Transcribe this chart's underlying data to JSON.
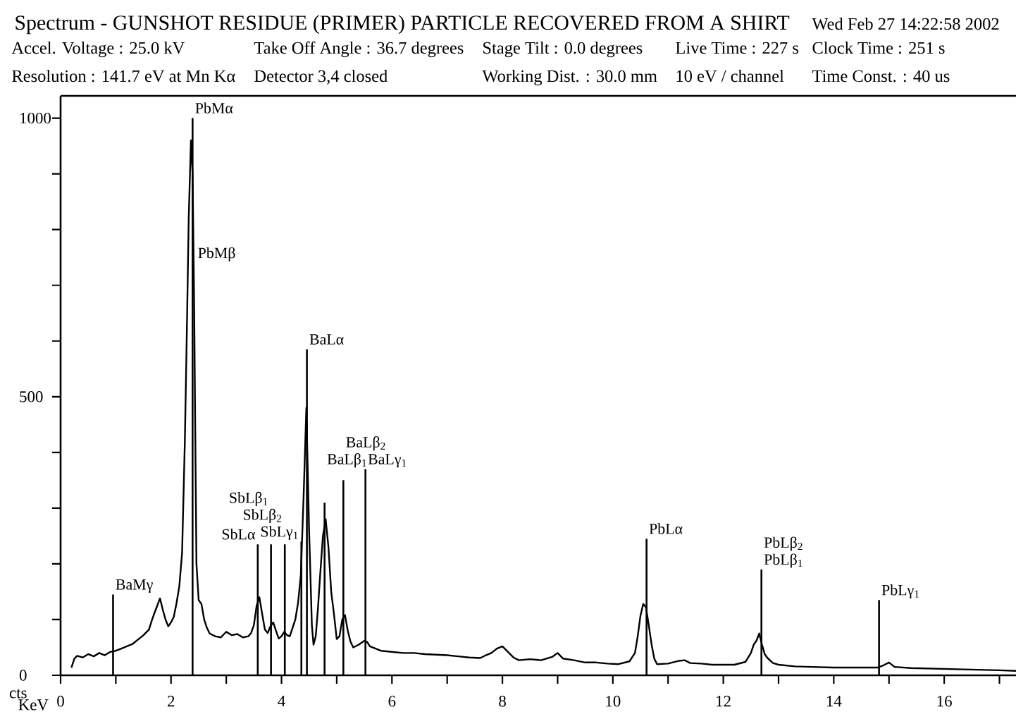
{
  "chart_data": {
    "type": "line",
    "title": "Spectrum - GUNSHOT RESIDUE (PRIMER) PARTICLE RECOVERED FROM A SHIRT",
    "subtitle": "Wed Feb 27 14:22:58 2002",
    "xlabel": "KeV",
    "ylabel": "cts",
    "xlim": [
      0,
      17.3
    ],
    "ylim": [
      0,
      1040
    ],
    "xticks": [
      0,
      {
        "value": 1,
        "label": null
      },
      2,
      {
        "value": 3,
        "label": null
      },
      4,
      {
        "value": 5,
        "label": null
      },
      6,
      {
        "value": 7,
        "label": null
      },
      8,
      {
        "value": 9,
        "label": null
      },
      10,
      {
        "value": 11,
        "label": null
      },
      12,
      {
        "value": 13,
        "label": null
      },
      14,
      {
        "value": 15,
        "label": null
      },
      16,
      {
        "value": 17,
        "label": null
      }
    ],
    "yticks": [
      0,
      {
        "value": 100,
        "label": null
      },
      {
        "value": 200,
        "label": null
      },
      {
        "value": 300,
        "label": null
      },
      {
        "value": 400,
        "label": null
      },
      500,
      {
        "value": 600,
        "label": null
      },
      {
        "value": 700,
        "label": null
      },
      {
        "value": 800,
        "label": null
      },
      {
        "value": 900,
        "label": null
      },
      1000
    ],
    "series": [
      {
        "color": "#000000",
        "x": [
          0.2,
          0.25,
          0.3,
          0.4,
          0.5,
          0.6,
          0.7,
          0.8,
          0.9,
          1.0,
          1.1,
          1.2,
          1.3,
          1.4,
          1.5,
          1.6,
          1.65,
          1.7,
          1.75,
          1.8,
          1.85,
          1.9,
          1.95,
          2.0,
          2.05,
          2.1,
          2.15,
          2.2,
          2.25,
          2.29,
          2.32,
          2.36,
          2.39,
          2.42,
          2.44,
          2.46,
          2.5,
          2.55,
          2.6,
          2.65,
          2.7,
          2.8,
          2.9,
          3.0,
          3.1,
          3.2,
          3.3,
          3.4,
          3.45,
          3.5,
          3.55,
          3.6,
          3.65,
          3.7,
          3.75,
          3.8,
          3.85,
          3.9,
          3.95,
          4.0,
          4.05,
          4.1,
          4.15,
          4.2,
          4.25,
          4.3,
          4.35,
          4.4,
          4.45,
          4.5,
          4.55,
          4.58,
          4.62,
          4.66,
          4.7,
          4.75,
          4.8,
          4.85,
          4.9,
          4.95,
          5.0,
          5.05,
          5.1,
          5.15,
          5.2,
          5.25,
          5.3,
          5.4,
          5.5,
          5.55,
          5.6,
          5.7,
          5.8,
          6.0,
          6.2,
          6.4,
          6.6,
          6.8,
          7.0,
          7.2,
          7.4,
          7.6,
          7.7,
          7.8,
          7.9,
          8.0,
          8.1,
          8.2,
          8.3,
          8.5,
          8.7,
          8.9,
          9.0,
          9.1,
          9.3,
          9.5,
          9.7,
          9.9,
          10.1,
          10.3,
          10.4,
          10.45,
          10.5,
          10.55,
          10.6,
          10.65,
          10.7,
          10.75,
          10.8,
          11.0,
          11.2,
          11.3,
          11.4,
          11.6,
          11.8,
          12.0,
          12.2,
          12.4,
          12.5,
          12.55,
          12.6,
          12.65,
          12.7,
          12.75,
          12.8,
          12.9,
          13.0,
          13.3,
          13.6,
          14.0,
          14.4,
          14.8,
          14.9,
          15.0,
          15.1,
          15.4,
          15.8,
          16.2,
          16.6,
          17.0,
          17.3
        ],
        "values": [
          15,
          30,
          35,
          32,
          38,
          34,
          40,
          36,
          42,
          44,
          48,
          52,
          56,
          64,
          72,
          82,
          98,
          112,
          125,
          138,
          118,
          100,
          88,
          95,
          105,
          130,
          160,
          220,
          420,
          640,
          820,
          960,
          900,
          650,
          420,
          200,
          135,
          128,
          100,
          85,
          75,
          70,
          68,
          78,
          72,
          74,
          68,
          70,
          76,
          90,
          125,
          140,
          110,
          82,
          76,
          88,
          95,
          80,
          66,
          70,
          78,
          72,
          70,
          85,
          100,
          130,
          180,
          320,
          480,
          260,
          90,
          55,
          70,
          120,
          180,
          250,
          280,
          230,
          150,
          110,
          65,
          70,
          100,
          108,
          80,
          60,
          50,
          55,
          62,
          60,
          52,
          48,
          44,
          42,
          40,
          40,
          38,
          37,
          36,
          34,
          32,
          31,
          36,
          40,
          48,
          52,
          42,
          32,
          27,
          29,
          27,
          33,
          40,
          30,
          27,
          23,
          23,
          21,
          20,
          25,
          40,
          70,
          107,
          128,
          122,
          90,
          56,
          30,
          20,
          21,
          26,
          27,
          22,
          21,
          19,
          19,
          19,
          24,
          40,
          55,
          62,
          75,
          55,
          38,
          31,
          22,
          19,
          16,
          15,
          14,
          14,
          14,
          18,
          23,
          15,
          13,
          12,
          11,
          10,
          9,
          8
        ]
      },
      {
        "type": "bar",
        "color": "#000000",
        "x": [
          0.95,
          2.39,
          3.57,
          3.81,
          4.06,
          4.36,
          4.46,
          4.78,
          5.12,
          5.52,
          10.61,
          12.69,
          14.82
        ],
        "values": [
          145,
          1000,
          235,
          235,
          235,
          240,
          585,
          310,
          350,
          370,
          245,
          190,
          135
        ]
      }
    ],
    "annotations": [
      "Accel. Voltage : 25.0 kV",
      "Take Off Angle : 36.7 degrees",
      "Stage Tilt : 0.0 degrees",
      "Live Time : 227 s",
      "Clock Time : 251 s",
      "Resolution : 141.7 eV at Mn Kα",
      "Detector 3,4 closed",
      "Working Dist. : 30.0 mm",
      "10 eV / channel",
      "Time Const. : 40 us",
      {
        "text": "BaMγ",
        "x": 0.95,
        "y": 145
      },
      {
        "text": "PbMα",
        "x": 2.39,
        "y": 1000
      },
      {
        "text": "PbMβ",
        "x": 2.44,
        "y": 740
      },
      {
        "text": "SbLα",
        "x": 3.57,
        "y": 235
      },
      {
        "text": "SbLβ$_{1}$",
        "x": 3.81,
        "y": 235
      },
      {
        "text": "SbLβ$_{2}$",
        "x": 4.06,
        "y": 235
      },
      {
        "text": "SbLγ$_{1}$",
        "x": 4.36,
        "y": 240
      },
      {
        "text": "BaLα",
        "x": 4.46,
        "y": 585
      },
      {
        "text": "BaLβ$_{1}$",
        "x": 4.78,
        "y": 310
      },
      {
        "text": "BaLβ$_{2}$",
        "x": 5.12,
        "y": 350
      },
      {
        "text": "BaLγ$_{1}$",
        "x": 5.52,
        "y": 370
      },
      {
        "text": "PbLα",
        "x": 10.61,
        "y": 245
      },
      {
        "text": "PbLβ$_{2}$",
        "x": 12.69,
        "y": 190
      },
      {
        "text": "PbLβ$_{1}$",
        "x": 12.69,
        "y": 190
      },
      {
        "text": "PbLγ$_{1}$",
        "x": 14.82,
        "y": 135
      }
    ]
  }
}
